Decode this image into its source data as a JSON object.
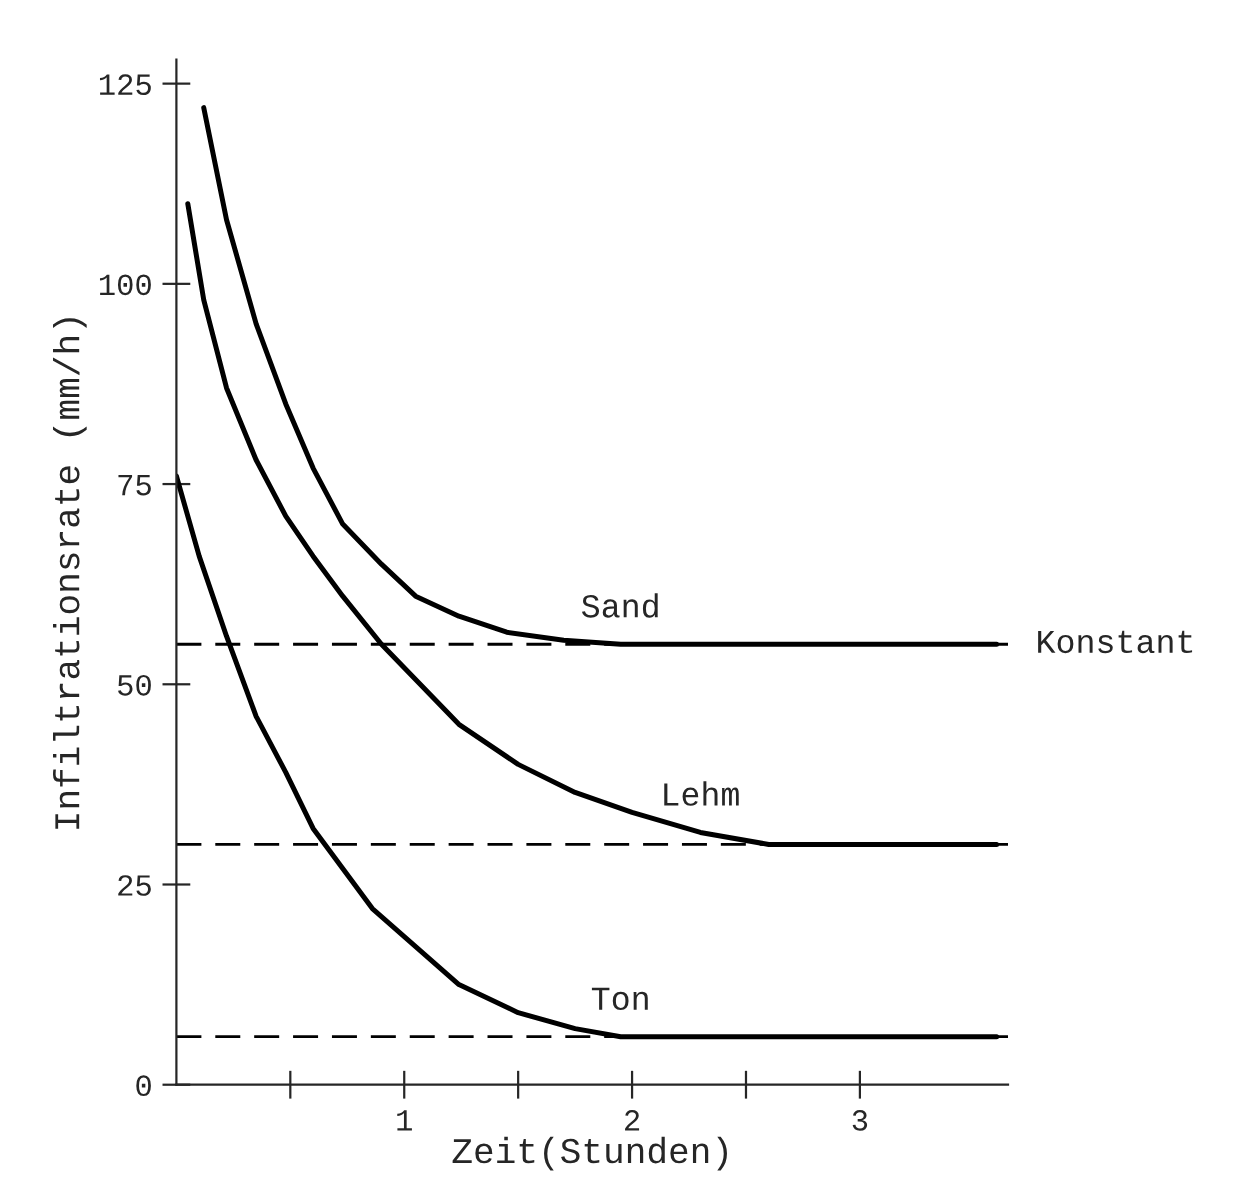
{
  "chart_data": {
    "type": "line",
    "xlabel": "Zeit(Stunden)",
    "ylabel": "Infiltrationsrate (mm/h)",
    "xlim": [
      0,
      3.65
    ],
    "ylim": [
      0,
      128
    ],
    "xticks": [
      {
        "value": 0.5,
        "label": null
      },
      1,
      {
        "value": 1.5,
        "label": null
      },
      2,
      {
        "value": 2.5,
        "label": null
      },
      3
    ],
    "yticks": [
      0,
      25,
      50,
      75,
      100,
      125
    ],
    "grid": false,
    "legend": false,
    "marker": "none",
    "line_style": "solid",
    "series": [
      {
        "name": "Sand",
        "color": "#000000",
        "x": [
          0.12,
          0.22,
          0.35,
          0.48,
          0.6,
          0.73,
          0.9,
          1.05,
          1.24,
          1.45,
          1.7,
          1.95,
          2.5,
          3.6
        ],
        "values": [
          122,
          108,
          95,
          85,
          77,
          70,
          65,
          61,
          58.5,
          56.5,
          55.5,
          55,
          55,
          55
        ]
      },
      {
        "name": "Lehm",
        "color": "#000000",
        "x": [
          0.05,
          0.12,
          0.22,
          0.35,
          0.48,
          0.6,
          0.73,
          0.9,
          1.24,
          1.5,
          1.75,
          2.0,
          2.3,
          2.6,
          3.6
        ],
        "values": [
          110,
          98,
          87,
          78,
          71,
          66,
          61,
          55,
          45,
          40,
          36.5,
          34,
          31.5,
          30,
          30
        ]
      },
      {
        "name": "Ton",
        "color": "#000000",
        "x": [
          0.0,
          0.1,
          0.22,
          0.35,
          0.48,
          0.6,
          0.73,
          0.86,
          1.0,
          1.24,
          1.5,
          1.75,
          1.95,
          2.5,
          3.6
        ],
        "values": [
          76,
          66,
          56,
          46,
          39,
          32,
          27,
          22,
          18.5,
          12.5,
          9,
          7,
          6,
          6,
          6
        ]
      }
    ],
    "ref_lines": [
      {
        "axis": "y",
        "value": 55,
        "line_style": "dashed",
        "color": "#000000"
      },
      {
        "axis": "y",
        "value": 30,
        "line_style": "dashed",
        "color": "#000000"
      },
      {
        "axis": "y",
        "value": 6,
        "line_style": "dashed",
        "color": "#000000"
      }
    ],
    "annotations": [
      {
        "text": "Konstant",
        "x": 3.6,
        "y": 55
      }
    ]
  }
}
